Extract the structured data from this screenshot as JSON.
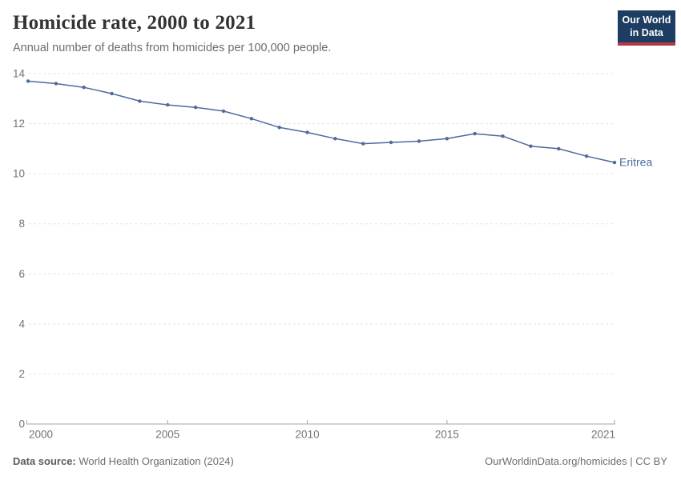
{
  "header": {
    "title": "Homicide rate, 2000 to 2021",
    "subtitle": "Annual number of deaths from homicides per 100,000 people.",
    "logo": {
      "line1": "Our World",
      "line2": "in Data"
    }
  },
  "chart_data": {
    "type": "line",
    "title": "Homicide rate, 2000 to 2021",
    "xlabel": "",
    "ylabel": "Annual number of deaths from homicides per 100,000 people",
    "xlim": [
      2000,
      2021
    ],
    "ylim": [
      0,
      14
    ],
    "x_ticks": [
      2000,
      2005,
      2010,
      2015,
      2021
    ],
    "y_ticks": [
      0,
      2,
      4,
      6,
      8,
      10,
      12,
      14
    ],
    "grid": "horizontal-dashed",
    "legend_position": "line-end-label",
    "series": [
      {
        "name": "Eritrea",
        "color": "#4C6A9C",
        "x": [
          2000,
          2001,
          2002,
          2003,
          2004,
          2005,
          2006,
          2007,
          2008,
          2009,
          2010,
          2011,
          2012,
          2013,
          2014,
          2015,
          2016,
          2017,
          2018,
          2019,
          2020,
          2021
        ],
        "values": [
          13.7,
          13.6,
          13.45,
          13.2,
          12.9,
          12.75,
          12.65,
          12.5,
          12.2,
          11.85,
          11.65,
          11.4,
          11.2,
          11.25,
          11.3,
          11.4,
          11.6,
          11.5,
          11.1,
          11.0,
          10.7,
          10.45
        ]
      }
    ]
  },
  "footer": {
    "source_label": "Data source:",
    "source_value": " World Health Organization (2024)",
    "attribution": "OurWorldinData.org/homicides | CC BY"
  },
  "colors": {
    "line": "#4C6A9C",
    "grid": "#e3e3e3",
    "axis": "#a5a5a5",
    "tick_text": "#737373",
    "logo_bg": "#1d3d63",
    "logo_stripe": "#b13a49"
  }
}
